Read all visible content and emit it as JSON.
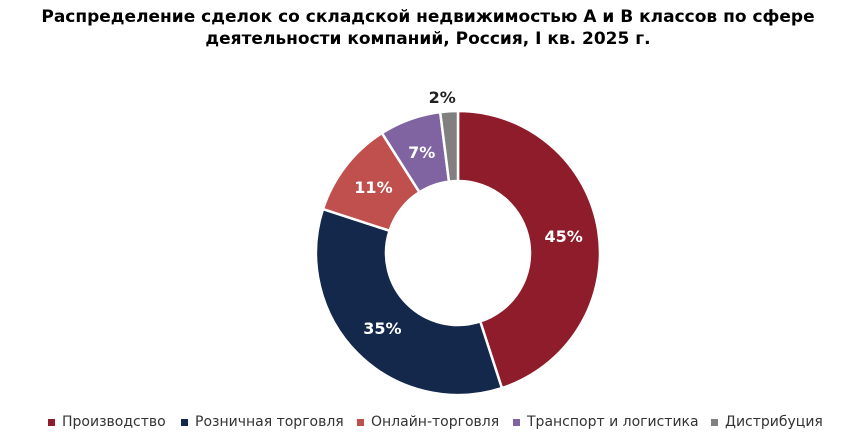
{
  "chart_data": {
    "type": "pie",
    "title_lines": [
      "Распределение сделок со складской недвижимостью А и В классов по сфере",
      "деятельности компаний, Россия, I кв. 2025 г."
    ],
    "unit": "%",
    "legend_position": "bottom",
    "slices": [
      {
        "label": "Производство",
        "value": 45,
        "display": "45%",
        "color": "#8f1c2b"
      },
      {
        "label": "Розничная торговля",
        "value": 35,
        "display": "35%",
        "color": "#13284b"
      },
      {
        "label": "Онлайн-торговля",
        "value": 11,
        "display": "11%",
        "color": "#c0504d"
      },
      {
        "label": "Транспорт и логистика",
        "value": 7,
        "display": "7%",
        "color": "#8064a2"
      },
      {
        "label": "Дистрибуция",
        "value": 2,
        "display": "2%",
        "color": "#808080"
      }
    ]
  }
}
